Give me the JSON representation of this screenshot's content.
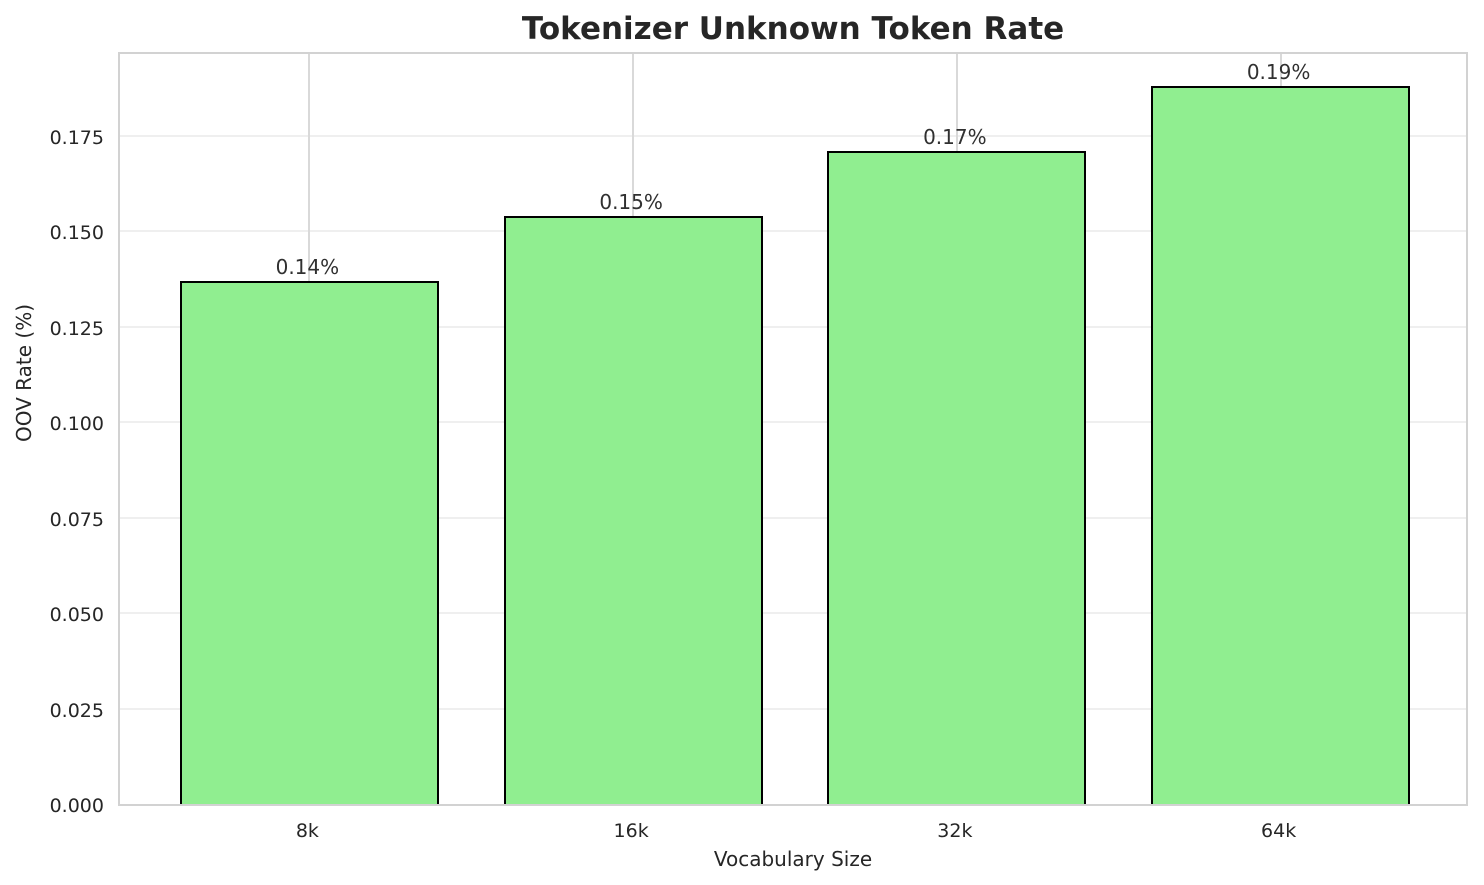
{
  "chart_data": {
    "type": "bar",
    "title": "Tokenizer Unknown Token Rate",
    "xlabel": "Vocabulary Size",
    "ylabel": "OOV Rate (%)",
    "categories": [
      "8k",
      "16k",
      "32k",
      "64k"
    ],
    "values": [
      0.137,
      0.154,
      0.171,
      0.188
    ],
    "bar_labels": [
      "0.14%",
      "0.15%",
      "0.17%",
      "0.19%"
    ],
    "ytick_labels": [
      "0.000",
      "0.025",
      "0.050",
      "0.075",
      "0.100",
      "0.125",
      "0.150",
      "0.175"
    ],
    "ytick_values": [
      0.0,
      0.025,
      0.05,
      0.075,
      0.1,
      0.125,
      0.15,
      0.175
    ],
    "ylim": [
      0,
      0.1974
    ],
    "grid": true,
    "legend": false,
    "bar_color": "#90EE90",
    "bar_edge_color": "#000000",
    "background_color": "#ffffff"
  }
}
